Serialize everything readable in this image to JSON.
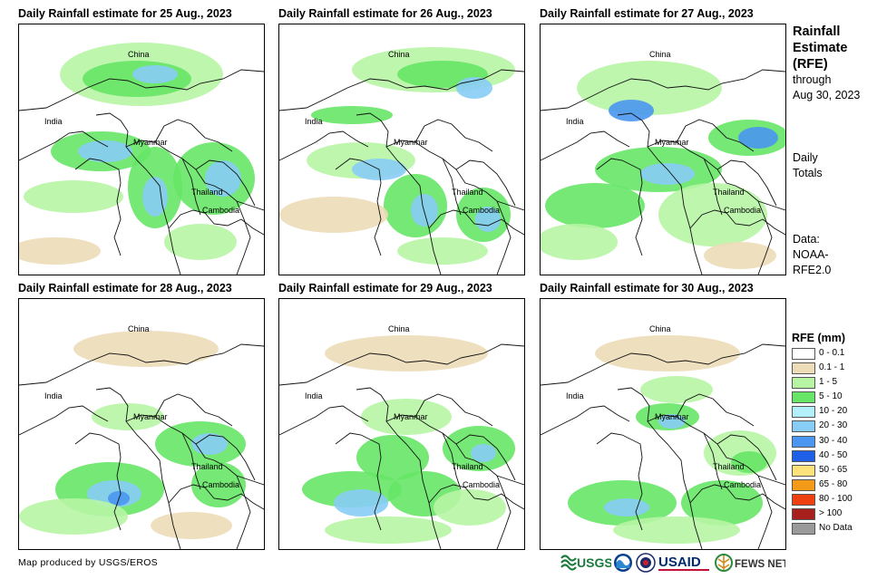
{
  "panels": [
    {
      "title": "Daily Rainfall estimate for 25 Aug., 2023",
      "labels": {
        "china": "China",
        "india": "India",
        "myanmar": "Myanmar",
        "thailand": "Thailand",
        "cambodia": "Cambodia"
      }
    },
    {
      "title": "Daily Rainfall estimate for 26 Aug., 2023",
      "labels": {
        "china": "China",
        "india": "India",
        "myanmar": "Myanmar",
        "thailand": "Thailand",
        "cambodia": "Cambodia"
      }
    },
    {
      "title": "Daily Rainfall estimate for 27 Aug., 2023",
      "labels": {
        "china": "China",
        "india": "India",
        "myanmar": "Myanmar",
        "thailand": "Thailand",
        "cambodia": "Cambodia"
      }
    },
    {
      "title": "Daily Rainfall estimate for 28 Aug., 2023",
      "labels": {
        "china": "China",
        "india": "India",
        "myanmar": "Myanmar",
        "thailand": "Thailand",
        "cambodia": "Cambodia"
      }
    },
    {
      "title": "Daily Rainfall estimate for 29 Aug., 2023",
      "labels": {
        "china": "China",
        "india": "India",
        "myanmar": "Myanmar",
        "thailand": "Thailand",
        "cambodia": "Cambodia"
      }
    },
    {
      "title": "Daily Rainfall estimate for 30 Aug., 2023",
      "labels": {
        "china": "China",
        "india": "India",
        "myanmar": "Myanmar",
        "thailand": "Thailand",
        "cambodia": "Cambodia"
      }
    }
  ],
  "sidebar": {
    "title_line1": "Rainfall",
    "title_line2": "Estimate",
    "title_line3": "(RFE)",
    "through": "through",
    "through_date": "Aug 30, 2023",
    "totals_line1": "Daily",
    "totals_line2": "Totals",
    "data_line1": "Data:",
    "data_line2": "NOAA-",
    "data_line3": "RFE2.0"
  },
  "legend": {
    "title": "RFE (mm)",
    "items": [
      {
        "label": "0 - 0.1",
        "color": "#ffffff"
      },
      {
        "label": "0.1 - 1",
        "color": "#ecdcb8"
      },
      {
        "label": "1 - 5",
        "color": "#b7f5a5"
      },
      {
        "label": "5 - 10",
        "color": "#66e566"
      },
      {
        "label": "10 - 20",
        "color": "#b4f0fa"
      },
      {
        "label": "20 - 30",
        "color": "#87cdf5"
      },
      {
        "label": "30 - 40",
        "color": "#4a96f0"
      },
      {
        "label": "40 - 50",
        "color": "#2060e8"
      },
      {
        "label": "50 - 65",
        "color": "#fbe27a"
      },
      {
        "label": "65 - 80",
        "color": "#f39a18"
      },
      {
        "label": "80 - 100",
        "color": "#ee4010"
      },
      {
        "label": "> 100",
        "color": "#a8201e"
      },
      {
        "label": "No Data",
        "color": "#9a9a9a"
      }
    ]
  },
  "credit": "Map produced by USGS/EROS",
  "logos": {
    "usgs": "USGS",
    "usaid": "USAID",
    "fews": "FEWS NET"
  }
}
